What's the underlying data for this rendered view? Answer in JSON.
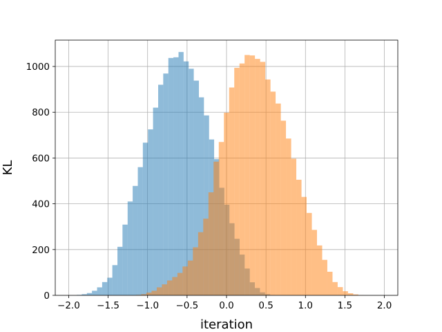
{
  "chart_data": {
    "type": "histogram",
    "title": "",
    "xlabel": "iteration",
    "ylabel": "KL",
    "xlim": [
      -2.17,
      2.17
    ],
    "ylim": [
      0,
      1115
    ],
    "x_ticks": [
      -2.0,
      -1.5,
      -1.0,
      -0.5,
      0.0,
      0.5,
      1.0,
      1.5,
      2.0
    ],
    "x_tick_labels": [
      "−2.0",
      "−1.5",
      "−1.0",
      "−0.5",
      "0.0",
      "0.5",
      "1.0",
      "1.5",
      "2.0"
    ],
    "y_ticks": [
      0,
      200,
      400,
      600,
      800,
      1000
    ],
    "y_tick_labels": [
      "0",
      "200",
      "400",
      "600",
      "800",
      "1000"
    ],
    "grid": true,
    "legend": "none",
    "alpha": 0.5,
    "series": [
      {
        "color": "#1f77b4",
        "bin_edges": [
          -1.963,
          -1.898,
          -1.834,
          -1.769,
          -1.705,
          -1.64,
          -1.576,
          -1.511,
          -1.447,
          -1.382,
          -1.318,
          -1.253,
          -1.189,
          -1.124,
          -1.06,
          -0.995,
          -0.931,
          -0.866,
          -0.802,
          -0.737,
          -0.673,
          -0.608,
          -0.544,
          -0.479,
          -0.415,
          -0.35,
          -0.286,
          -0.221,
          -0.157,
          -0.092,
          -0.028,
          0.037,
          0.101,
          0.166,
          0.23,
          0.295,
          0.359,
          0.424,
          0.488,
          0.553,
          0.617,
          0.682,
          0.746
        ],
        "counts": [
          0,
          2,
          5,
          10,
          20,
          35,
          58,
          77,
          132,
          212,
          309,
          410,
          478,
          560,
          667,
          725,
          820,
          920,
          969,
          1037,
          1040,
          1063,
          1022,
          990,
          938,
          865,
          786,
          681,
          595,
          470,
          396,
          315,
          247,
          178,
          117,
          57,
          32,
          13,
          5,
          1,
          0,
          0
        ]
      },
      {
        "color": "#ff7f0e",
        "bin_edges": [
          -1.212,
          -1.146,
          -1.081,
          -1.015,
          -0.95,
          -0.884,
          -0.819,
          -0.753,
          -0.688,
          -0.622,
          -0.557,
          -0.491,
          -0.426,
          -0.36,
          -0.295,
          -0.229,
          -0.164,
          -0.098,
          -0.033,
          0.033,
          0.098,
          0.164,
          0.229,
          0.295,
          0.36,
          0.426,
          0.491,
          0.557,
          0.622,
          0.688,
          0.753,
          0.819,
          0.884,
          0.95,
          1.015,
          1.081,
          1.146,
          1.212,
          1.277,
          1.343,
          1.408,
          1.474,
          1.539,
          1.605,
          1.67,
          1.736
        ],
        "counts": [
          0,
          2,
          5,
          12,
          20,
          35,
          48,
          65,
          80,
          98,
          126,
          152,
          210,
          276,
          335,
          450,
          584,
          670,
          798,
          908,
          994,
          1013,
          1050,
          1048,
          1033,
          1020,
          943,
          890,
          838,
          763,
          685,
          597,
          505,
          430,
          360,
          286,
          218,
          155,
          103,
          58,
          36,
          18,
          9,
          4,
          1
        ]
      }
    ]
  }
}
